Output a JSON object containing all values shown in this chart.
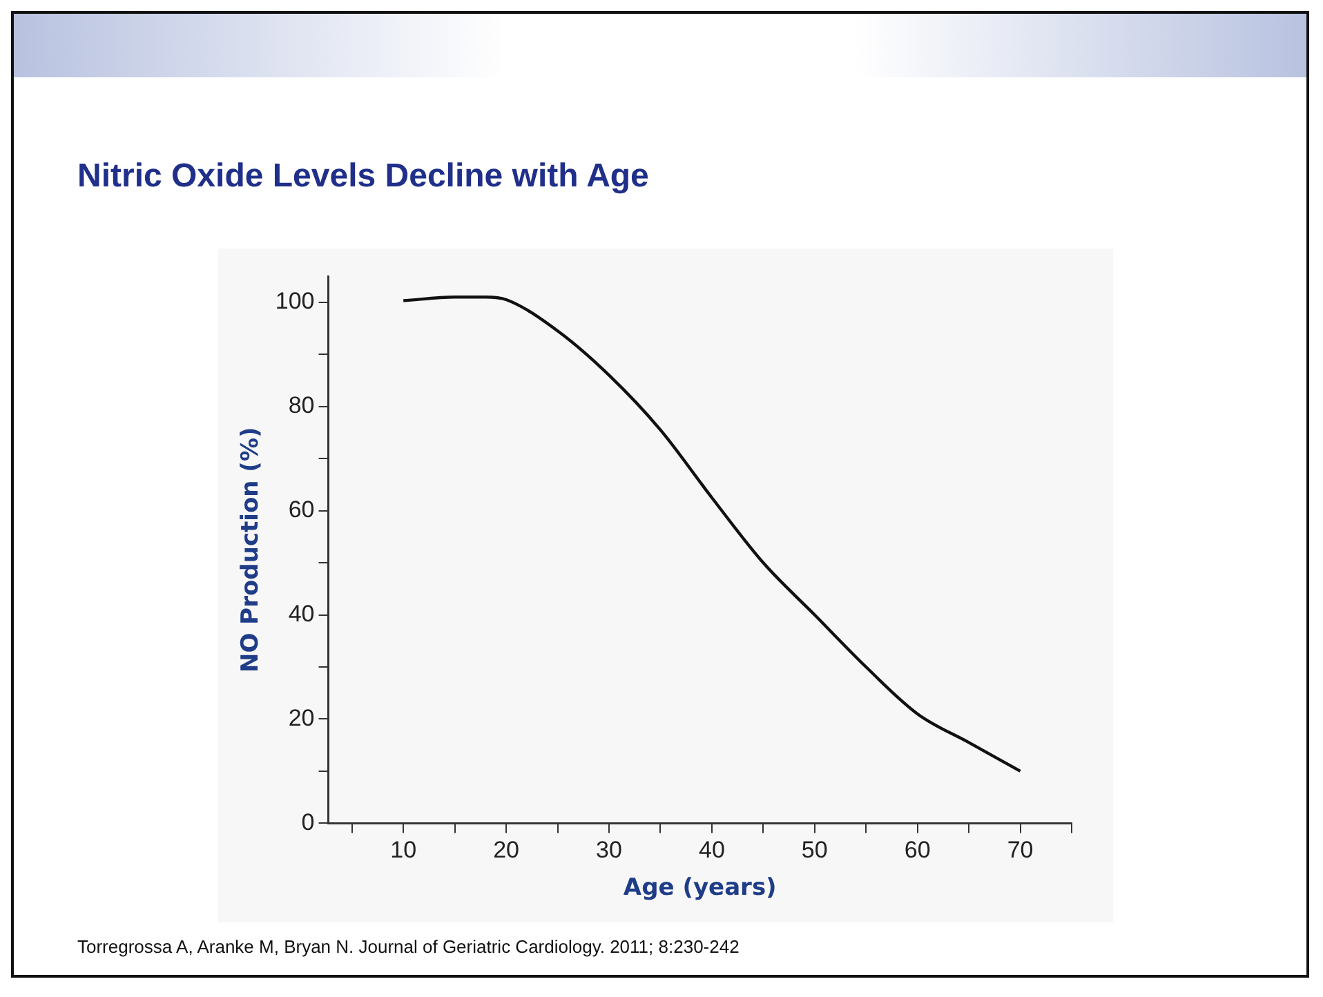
{
  "chart_data": {
    "type": "line",
    "title": "Nitric Oxide Levels Decline with Age",
    "xlabel": "Age (years)",
    "ylabel": "NO Production (%)",
    "annotations": [
      "Torregrossa A, Aranke M, Bryan N. Journal of Geriatric Cardiology. 2011; 8:230-242"
    ],
    "series": [
      {
        "color": "#111111",
        "x": [
          10,
          15,
          18,
          20,
          25,
          30,
          35,
          40,
          45,
          50,
          55,
          60,
          65,
          70
        ],
        "values": [
          100.3,
          101,
          101,
          100.5,
          94.5,
          86,
          75.5,
          62.5,
          50,
          40,
          30,
          21,
          15.5,
          10
        ]
      }
    ],
    "xlim": [
      2.7,
      75
    ],
    "ylim": [
      0,
      105
    ],
    "xticks": [
      {
        "value": 5,
        "label": null
      },
      10,
      {
        "value": 15,
        "label": null
      },
      20,
      {
        "value": 25,
        "label": null
      },
      30,
      {
        "value": 35,
        "label": null
      },
      40,
      {
        "value": 45,
        "label": null
      },
      50,
      {
        "value": 55,
        "label": null
      },
      60,
      {
        "value": 65,
        "label": null
      },
      70,
      {
        "value": 75,
        "label": null
      }
    ],
    "yticks": [
      0,
      {
        "value": 10,
        "label": null
      },
      20,
      {
        "value": 30,
        "label": null
      },
      40,
      {
        "value": 50,
        "label": null
      },
      60,
      {
        "value": 70,
        "label": null
      },
      80,
      {
        "value": 90,
        "label": null
      },
      100
    ],
    "grid": false,
    "legend": false,
    "marker": "none",
    "line_style": "solid"
  }
}
